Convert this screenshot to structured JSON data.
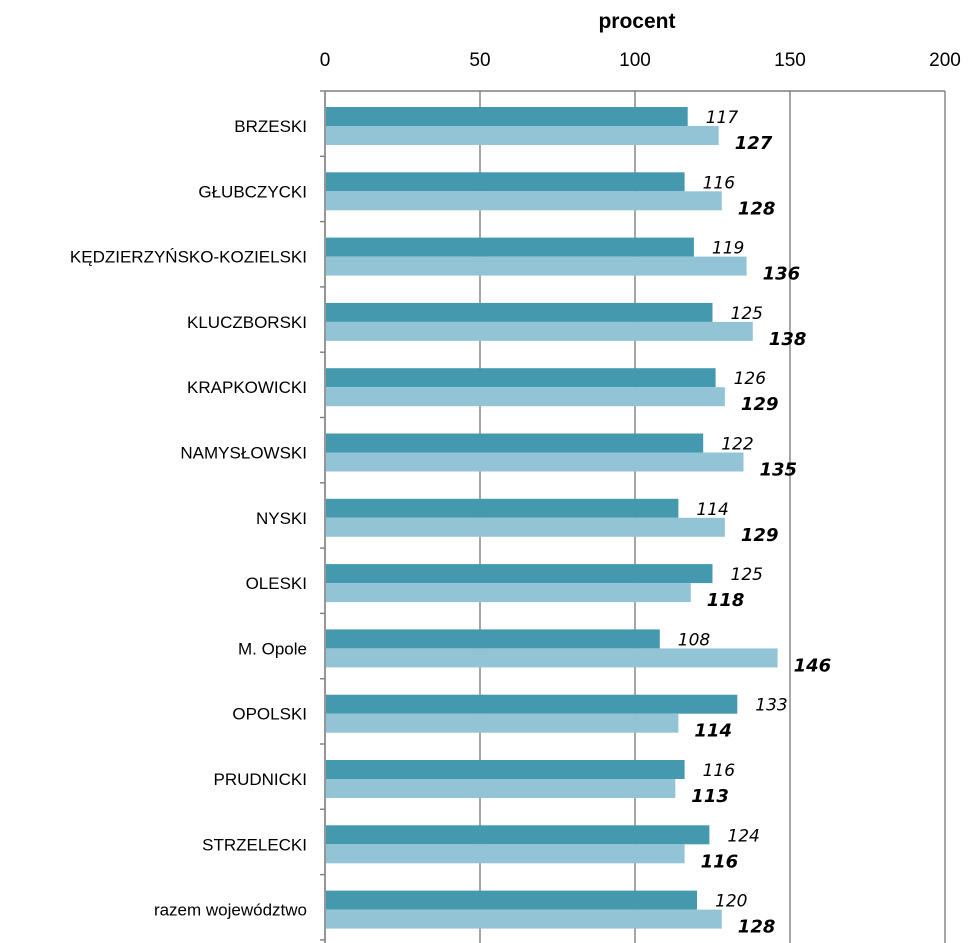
{
  "chart_data": {
    "type": "bar",
    "orientation": "horizontal",
    "xlabel": "procent",
    "xlabel_position": "top",
    "xlim": [
      0,
      200
    ],
    "xticks": [
      0,
      50,
      100,
      150,
      200
    ],
    "grid": true,
    "legend": null,
    "categories": [
      "BRZESKI",
      "GŁUBCZYCKI",
      "KĘDZIERZYŃSKO-KOZIELSKI",
      "KLUCZBORSKI",
      "KRAPKOWICKI",
      "NAMYSŁOWSKI",
      "NYSKI",
      "OLESKI",
      "M. Opole",
      "OPOLSKI",
      "PRUDNICKI",
      "STRZELECKI",
      "razem województwo"
    ],
    "series": [
      {
        "color": "#4499AE",
        "label_style": "italic",
        "values": [
          117,
          116,
          119,
          125,
          126,
          122,
          114,
          125,
          108,
          133,
          116,
          124,
          120
        ]
      },
      {
        "color": "#93C4D6",
        "label_style": "bold-italic",
        "values": [
          127,
          128,
          136,
          138,
          129,
          135,
          129,
          118,
          146,
          114,
          113,
          116,
          128
        ]
      }
    ]
  }
}
